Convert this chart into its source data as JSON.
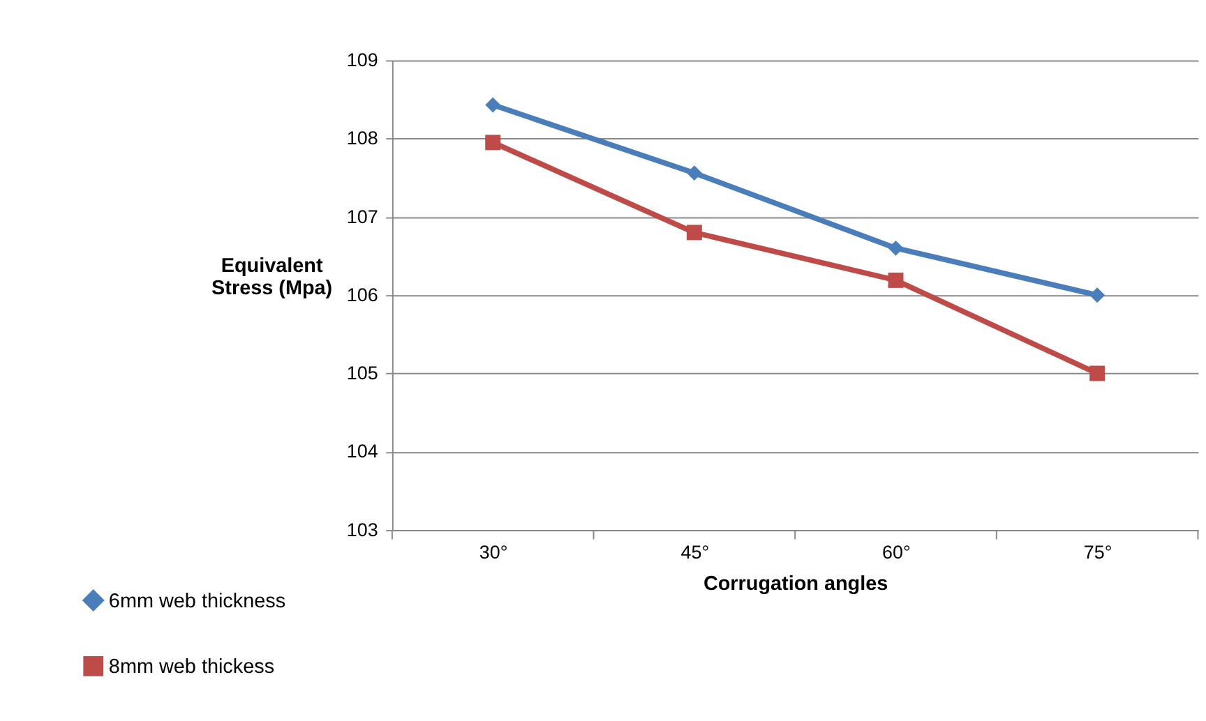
{
  "chart_data": {
    "type": "line",
    "xlabel": "Corrugation angles",
    "ylabel": "Equivalent Stress (Mpa)",
    "categories": [
      "30°",
      "45°",
      "60°",
      "75°"
    ],
    "series": [
      {
        "name": "6mm web thickness",
        "color": "#4a7ebb",
        "marker": "diamond",
        "values": [
          108.43,
          107.56,
          106.6,
          106.0
        ]
      },
      {
        "name": "8mm web thickess",
        "color": "#be4b48",
        "marker": "square",
        "values": [
          107.95,
          106.8,
          106.19,
          105.0
        ]
      }
    ],
    "ylim": [
      103,
      109
    ],
    "yticks": [
      103,
      104,
      105,
      106,
      107,
      108,
      109
    ],
    "grid": "y",
    "legend": "bottom left"
  }
}
